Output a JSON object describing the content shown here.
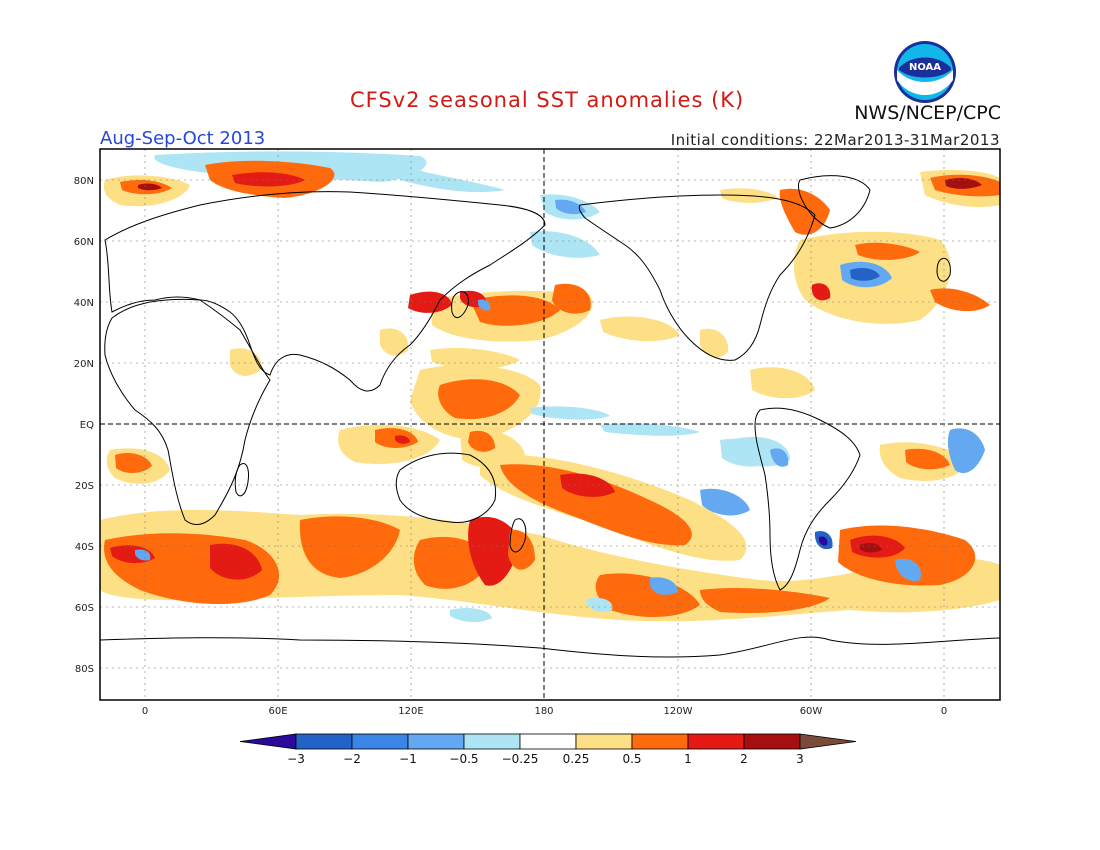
{
  "header": {
    "title": "CFSv2 seasonal SST anomalies (K)",
    "season": "Aug-Sep-Oct 2013",
    "initial_conditions": "Initial conditions: 22Mar2013-31Mar2013",
    "agency": "NWS/NCEP/CPC",
    "logo_text": "NOAA"
  },
  "map": {
    "lat_labels": [
      "80N",
      "60N",
      "40N",
      "20N",
      "EQ",
      "20S",
      "40S",
      "60S",
      "80S"
    ],
    "lon_labels": [
      "0",
      "60E",
      "120E",
      "180",
      "120W",
      "60W",
      "0"
    ]
  },
  "colorbar": {
    "labels": [
      "-3",
      "-2",
      "-1",
      "-0.5",
      "-0.25",
      "0.25",
      "0.5",
      "1",
      "2",
      "3"
    ],
    "colors": [
      "#2a0a9a",
      "#2363c8",
      "#3a85e6",
      "#63a8f0",
      "#aee5f4",
      "#ffffff",
      "#fde085",
      "#ff6a0d",
      "#e41a14",
      "#a50f0f",
      "#7a4a3a"
    ]
  }
}
